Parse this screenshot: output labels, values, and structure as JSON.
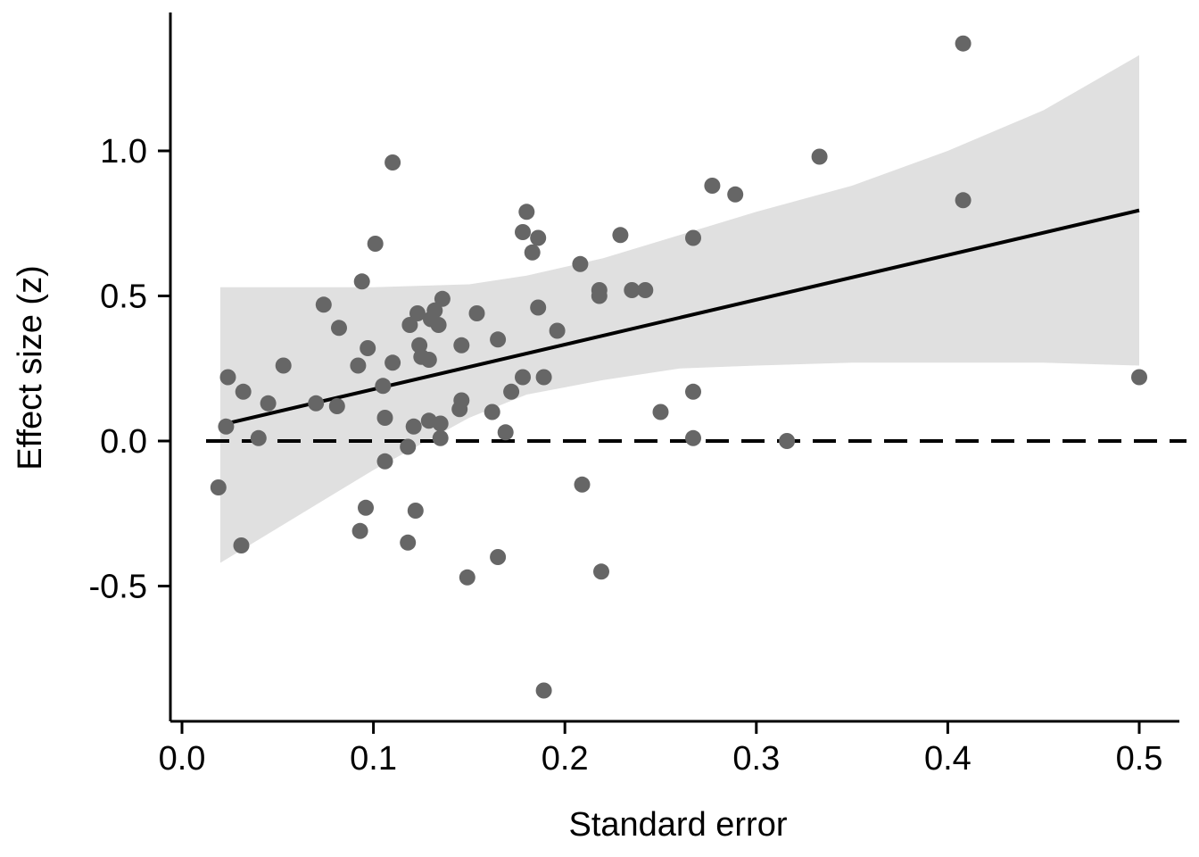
{
  "chart_data": {
    "type": "scatter",
    "xlabel": "Standard error",
    "ylabel": "Effect size (z)",
    "xlim": [
      -0.005,
      0.52
    ],
    "ylim": [
      -0.97,
      1.47
    ],
    "x_ticks": [
      0.0,
      0.1,
      0.2,
      0.3,
      0.4,
      0.5
    ],
    "x_tick_labels": [
      "0.0",
      "0.1",
      "0.2",
      "0.3",
      "0.4",
      "0.5"
    ],
    "y_ticks": [
      1.0,
      0.5,
      0.0,
      -0.5
    ],
    "y_tick_labels": [
      "1.0",
      "0.5",
      "0.0",
      "-0.5"
    ],
    "reference_line": {
      "y": 0.0,
      "style": "dashed"
    },
    "grid": false,
    "colors": {
      "points": "#666666",
      "band": "#e0e0e0",
      "line": "#000000"
    },
    "fit": {
      "x": [
        0.02,
        0.5
      ],
      "y": [
        0.055,
        0.795
      ]
    },
    "confidence_band": {
      "x": [
        0.02,
        0.05,
        0.1,
        0.15,
        0.18,
        0.22,
        0.26,
        0.3,
        0.35,
        0.4,
        0.45,
        0.5
      ],
      "upper": [
        0.53,
        0.53,
        0.53,
        0.54,
        0.57,
        0.63,
        0.71,
        0.79,
        0.88,
        1.0,
        1.14,
        1.33
      ],
      "lower": [
        -0.42,
        -0.3,
        -0.1,
        0.08,
        0.16,
        0.21,
        0.25,
        0.26,
        0.27,
        0.27,
        0.27,
        0.26
      ]
    },
    "series": [
      {
        "points": [
          [
            0.019,
            -0.16
          ],
          [
            0.023,
            0.05
          ],
          [
            0.024,
            0.22
          ],
          [
            0.031,
            -0.36
          ],
          [
            0.032,
            0.17
          ],
          [
            0.04,
            0.01
          ],
          [
            0.045,
            0.13
          ],
          [
            0.053,
            0.26
          ],
          [
            0.07,
            0.13
          ],
          [
            0.074,
            0.47
          ],
          [
            0.081,
            0.12
          ],
          [
            0.082,
            0.39
          ],
          [
            0.092,
            0.26
          ],
          [
            0.093,
            -0.31
          ],
          [
            0.094,
            0.55
          ],
          [
            0.096,
            -0.23
          ],
          [
            0.097,
            0.32
          ],
          [
            0.101,
            0.68
          ],
          [
            0.105,
            0.19
          ],
          [
            0.106,
            0.08
          ],
          [
            0.106,
            -0.07
          ],
          [
            0.11,
            0.27
          ],
          [
            0.11,
            0.96
          ],
          [
            0.118,
            -0.35
          ],
          [
            0.118,
            -0.02
          ],
          [
            0.119,
            0.4
          ],
          [
            0.121,
            0.05
          ],
          [
            0.122,
            -0.24
          ],
          [
            0.123,
            0.44
          ],
          [
            0.124,
            0.33
          ],
          [
            0.125,
            0.29
          ],
          [
            0.129,
            0.28
          ],
          [
            0.129,
            0.07
          ],
          [
            0.13,
            0.42
          ],
          [
            0.132,
            0.45
          ],
          [
            0.134,
            0.4
          ],
          [
            0.135,
            0.06
          ],
          [
            0.135,
            0.01
          ],
          [
            0.136,
            0.49
          ],
          [
            0.145,
            0.11
          ],
          [
            0.146,
            0.14
          ],
          [
            0.146,
            0.33
          ],
          [
            0.149,
            -0.47
          ],
          [
            0.154,
            0.44
          ],
          [
            0.162,
            0.1
          ],
          [
            0.165,
            0.35
          ],
          [
            0.165,
            -0.4
          ],
          [
            0.169,
            0.03
          ],
          [
            0.172,
            0.17
          ],
          [
            0.178,
            0.72
          ],
          [
            0.178,
            0.22
          ],
          [
            0.18,
            0.79
          ],
          [
            0.183,
            0.65
          ],
          [
            0.186,
            0.7
          ],
          [
            0.186,
            0.46
          ],
          [
            0.189,
            0.22
          ],
          [
            0.189,
            -0.86
          ],
          [
            0.196,
            0.38
          ],
          [
            0.208,
            0.61
          ],
          [
            0.209,
            -0.15
          ],
          [
            0.218,
            0.52
          ],
          [
            0.218,
            0.5
          ],
          [
            0.219,
            -0.45
          ],
          [
            0.229,
            0.71
          ],
          [
            0.235,
            0.52
          ],
          [
            0.242,
            0.52
          ],
          [
            0.25,
            0.1
          ],
          [
            0.267,
            0.7
          ],
          [
            0.267,
            0.17
          ],
          [
            0.267,
            0.01
          ],
          [
            0.277,
            0.88
          ],
          [
            0.289,
            0.85
          ],
          [
            0.316,
            0.0
          ],
          [
            0.333,
            0.98
          ],
          [
            0.408,
            1.37
          ],
          [
            0.408,
            0.83
          ],
          [
            0.5,
            0.22
          ]
        ]
      }
    ]
  }
}
